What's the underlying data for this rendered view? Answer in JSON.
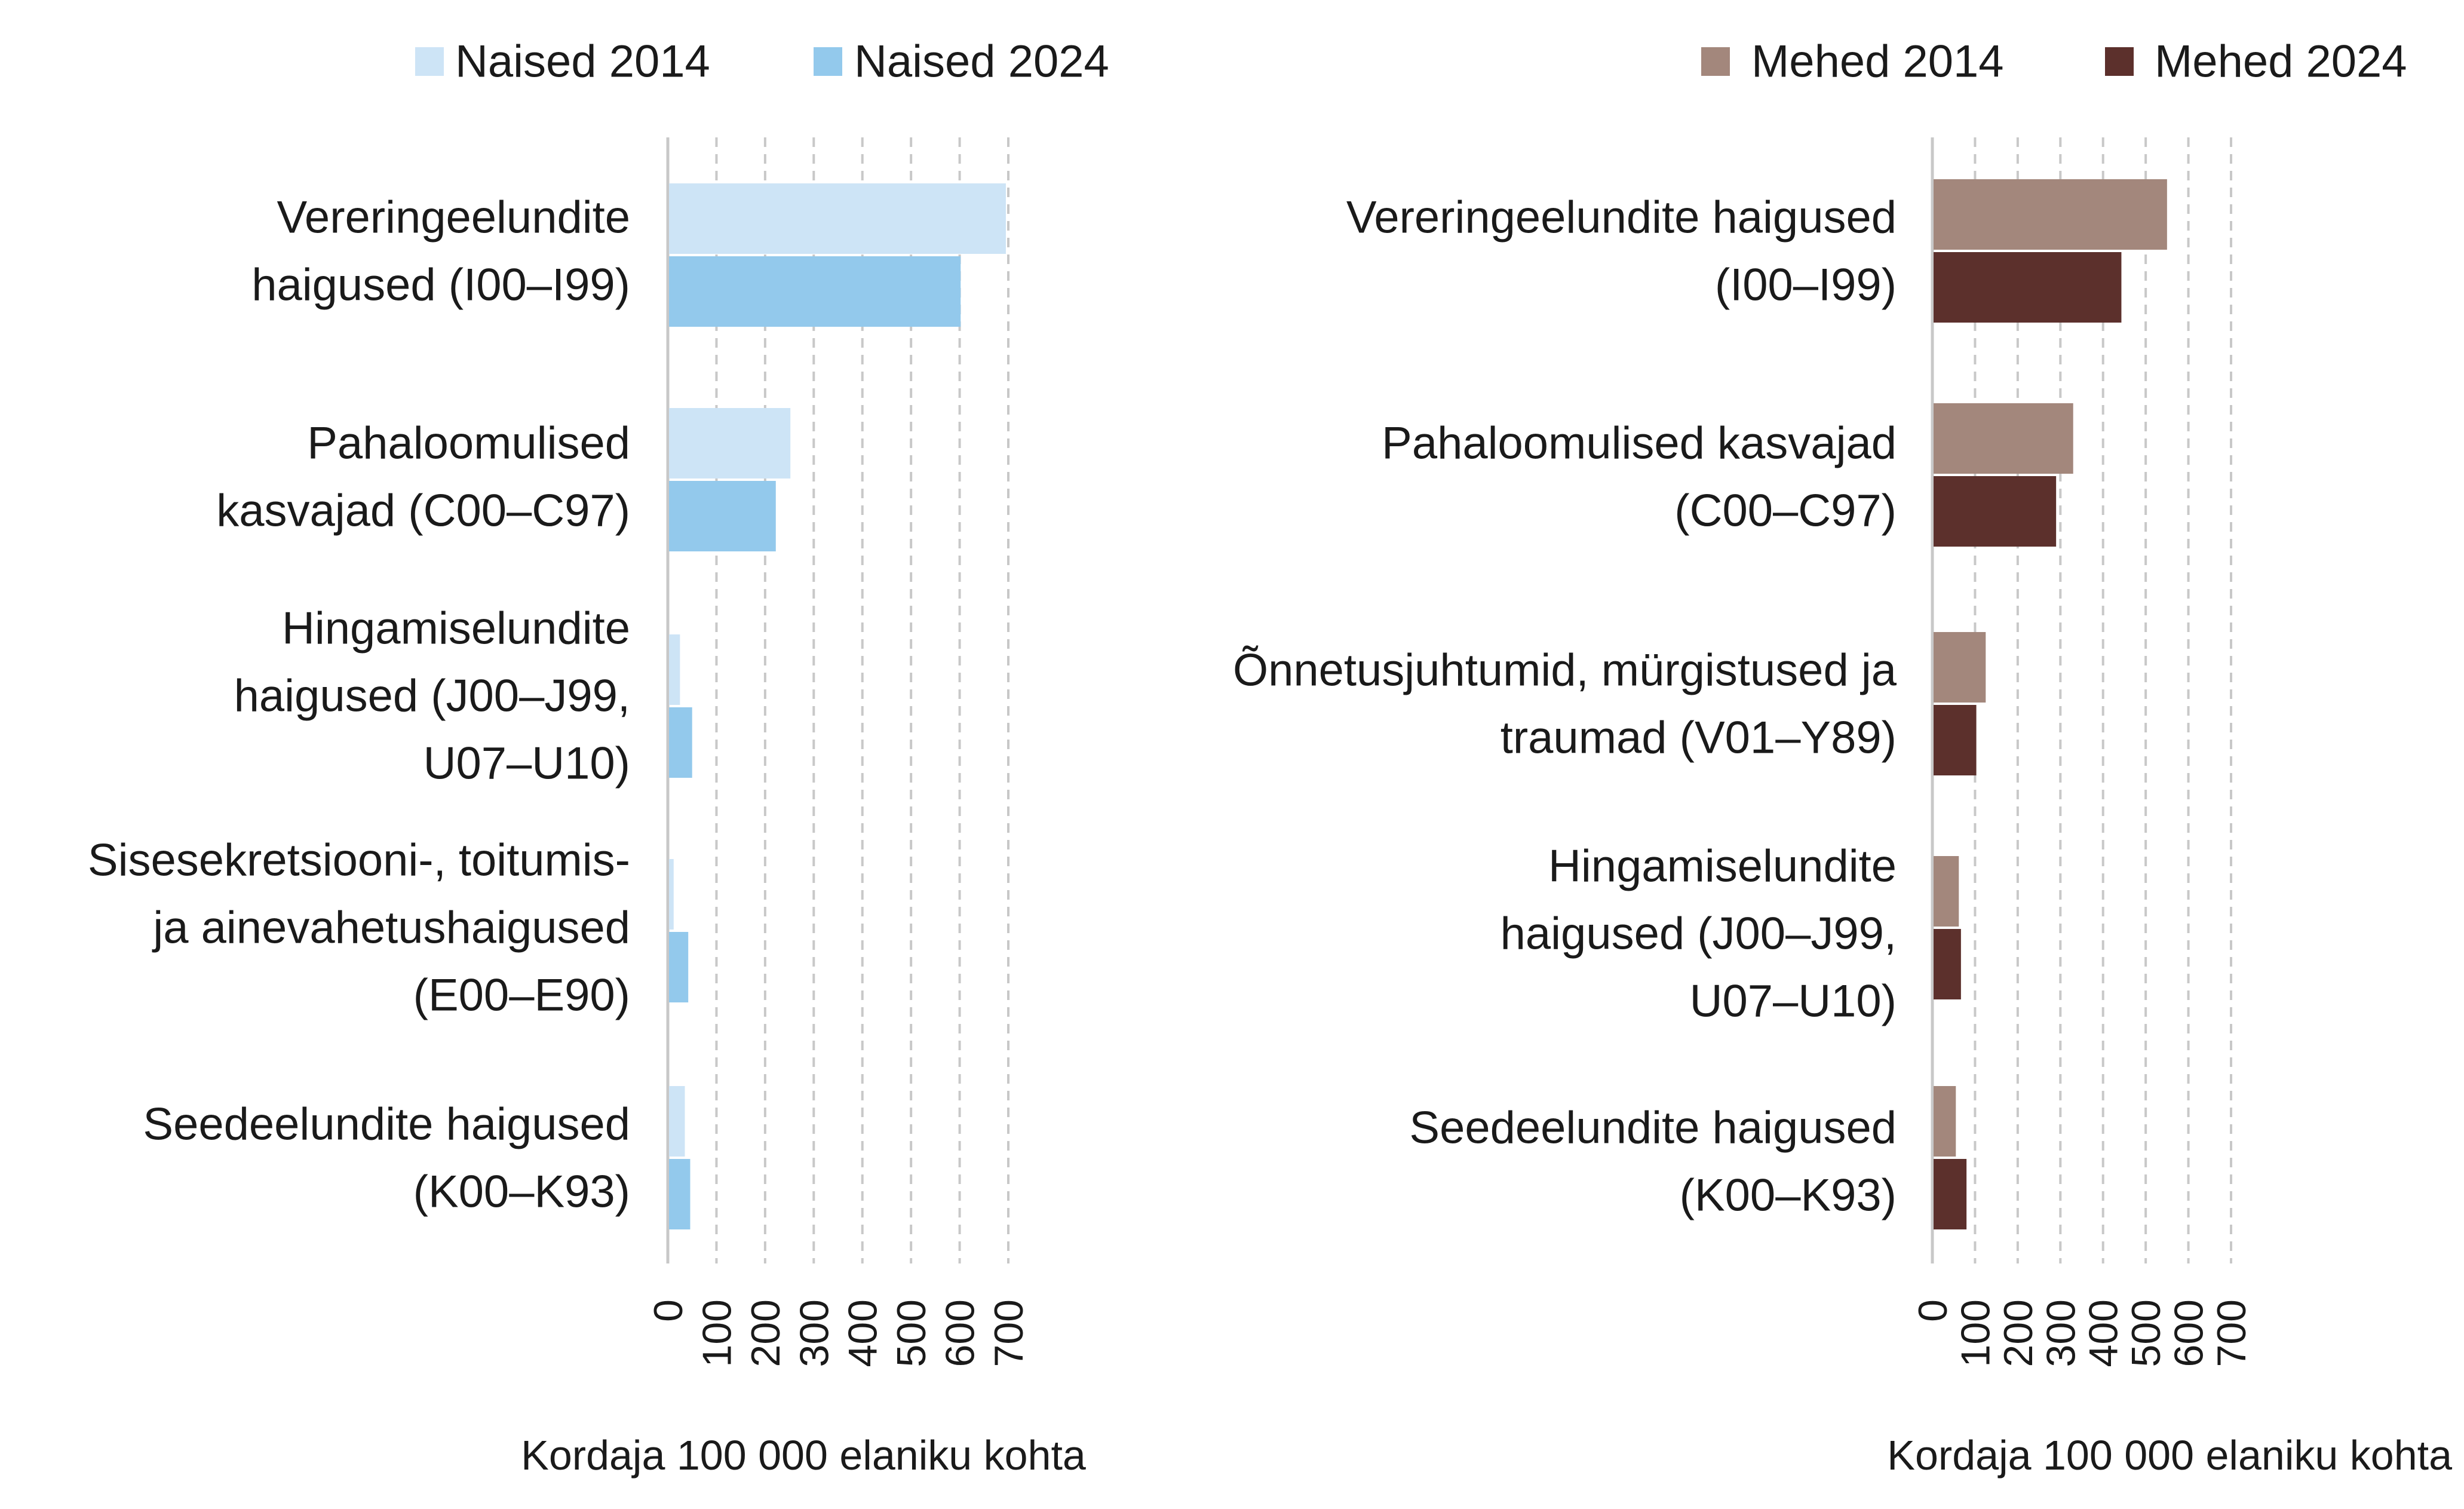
{
  "chart_data": [
    {
      "type": "bar",
      "orientation": "horizontal",
      "categories": [
        "Vereringeelundite haigused (I00–I99)",
        "Pahaloomulised kasvajad (C00–C97)",
        "Hingamiselundite haigused (J00–J99, U07–U10)",
        "Sisesekretsiooni-, toitumis- ja ainevahetushaigused (E00–E90)",
        "Seedeelundite haigused (K00–K93)"
      ],
      "category_lines": [
        [
          "Vereringeelundite",
          "haigused (I00–I99)"
        ],
        [
          "Pahaloomulised",
          "kasvajad (C00–C97)"
        ],
        [
          "Hingamiselundite",
          "haigused (J00–J99,",
          "U07–U10)"
        ],
        [
          "Sisesekretsiooni-, toitumis-",
          "ja ainevahetushaigused",
          "(E00–E90)"
        ],
        [
          "Seedeelundite haigused",
          "(K00–K93)"
        ]
      ],
      "series": [
        {
          "name": "Naised 2014",
          "color": "#cde4f6",
          "values": [
            695,
            252,
            25,
            12,
            35
          ]
        },
        {
          "name": "Naised 2024",
          "color": "#93c9ec",
          "values": [
            602,
            222,
            50,
            42,
            46
          ]
        }
      ],
      "xlabel": "Kordaja 100 000 elaniku kohta",
      "xlim": [
        0,
        700
      ],
      "xticks": [
        "0",
        "100",
        "200",
        "300",
        "400",
        "500",
        "600",
        "700"
      ],
      "grid": true,
      "legend_position": "top"
    },
    {
      "type": "bar",
      "orientation": "horizontal",
      "categories": [
        "Vereringeelundite haigused (I00–I99)",
        "Pahaloomulised kasvajad (C00–C97)",
        "Õnnetusjuhtumid, mürgistused ja traumad (V01–Y89)",
        "Hingamiselundite haigused (J00–J99, U07–U10)",
        "Seedeelundite haigused (K00–K93)"
      ],
      "category_lines": [
        [
          "Vereringeelundite haigused",
          "(I00–I99)"
        ],
        [
          "Pahaloomulised kasvajad",
          "(C00–C97)"
        ],
        [
          "Õnnetusjuhtumid, mürgistused ja",
          "traumad (V01–Y89)"
        ],
        [
          "Hingamiselundite",
          "haigused (J00–J99,",
          "U07–U10)"
        ],
        [
          "Seedeelundite haigused",
          "(K00–K93)"
        ]
      ],
      "series": [
        {
          "name": "Mehed 2014",
          "color": "#a3877c",
          "values": [
            550,
            330,
            125,
            62,
            55
          ]
        },
        {
          "name": "Mehed 2024",
          "color": "#5c302c",
          "values": [
            443,
            290,
            103,
            67,
            80
          ]
        }
      ],
      "xlabel": "Kordaja 100 000 elaniku kohta",
      "xlim": [
        0,
        700
      ],
      "xticks": [
        "0",
        "100",
        "200",
        "300",
        "400",
        "500",
        "600",
        "700"
      ],
      "grid": true,
      "legend_position": "top"
    }
  ]
}
